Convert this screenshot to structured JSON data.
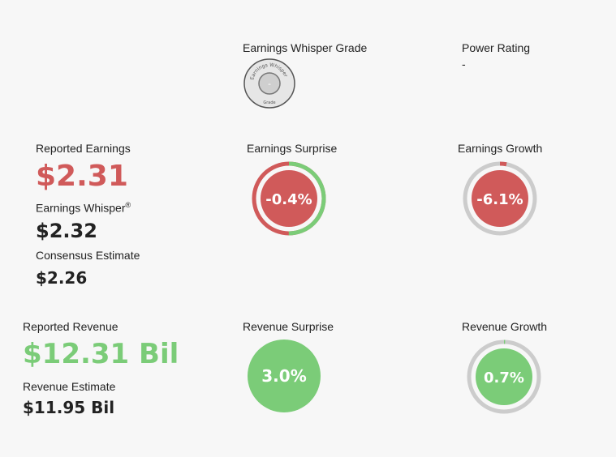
{
  "grade": {
    "title": "Earnings Whisper Grade",
    "seal_text": "Earnings Whisper",
    "seal_sub": "Grade",
    "value": "-"
  },
  "power": {
    "title": "Power Rating",
    "value": "-"
  },
  "earnings": {
    "reported_label": "Reported Earnings",
    "reported_value": "$2.31",
    "whisper_label": "Earnings Whisper",
    "whisper_mark": "®",
    "whisper_value": "$2.32",
    "consensus_label": "Consensus Estimate",
    "consensus_value": "$2.26"
  },
  "earnings_surprise": {
    "title": "Earnings Surprise",
    "value": "-0.4%",
    "fill_fraction": 0.5
  },
  "earnings_growth": {
    "title": "Earnings Growth",
    "value": "-6.1%",
    "fill_fraction": 0.03
  },
  "revenue": {
    "reported_label": "Reported Revenue",
    "reported_value": "$12.31 Bil",
    "estimate_label": "Revenue Estimate",
    "estimate_value": "$11.95 Bil"
  },
  "revenue_surprise": {
    "title": "Revenue Surprise",
    "value": "3.0%",
    "fill_fraction": 1.0
  },
  "revenue_growth": {
    "title": "Revenue Growth",
    "value": "0.7%",
    "fill_fraction": 0.005
  },
  "colors": {
    "red": "#d05a5a",
    "green": "#7bcc78",
    "track": "#cccccc",
    "text": "#222222"
  }
}
